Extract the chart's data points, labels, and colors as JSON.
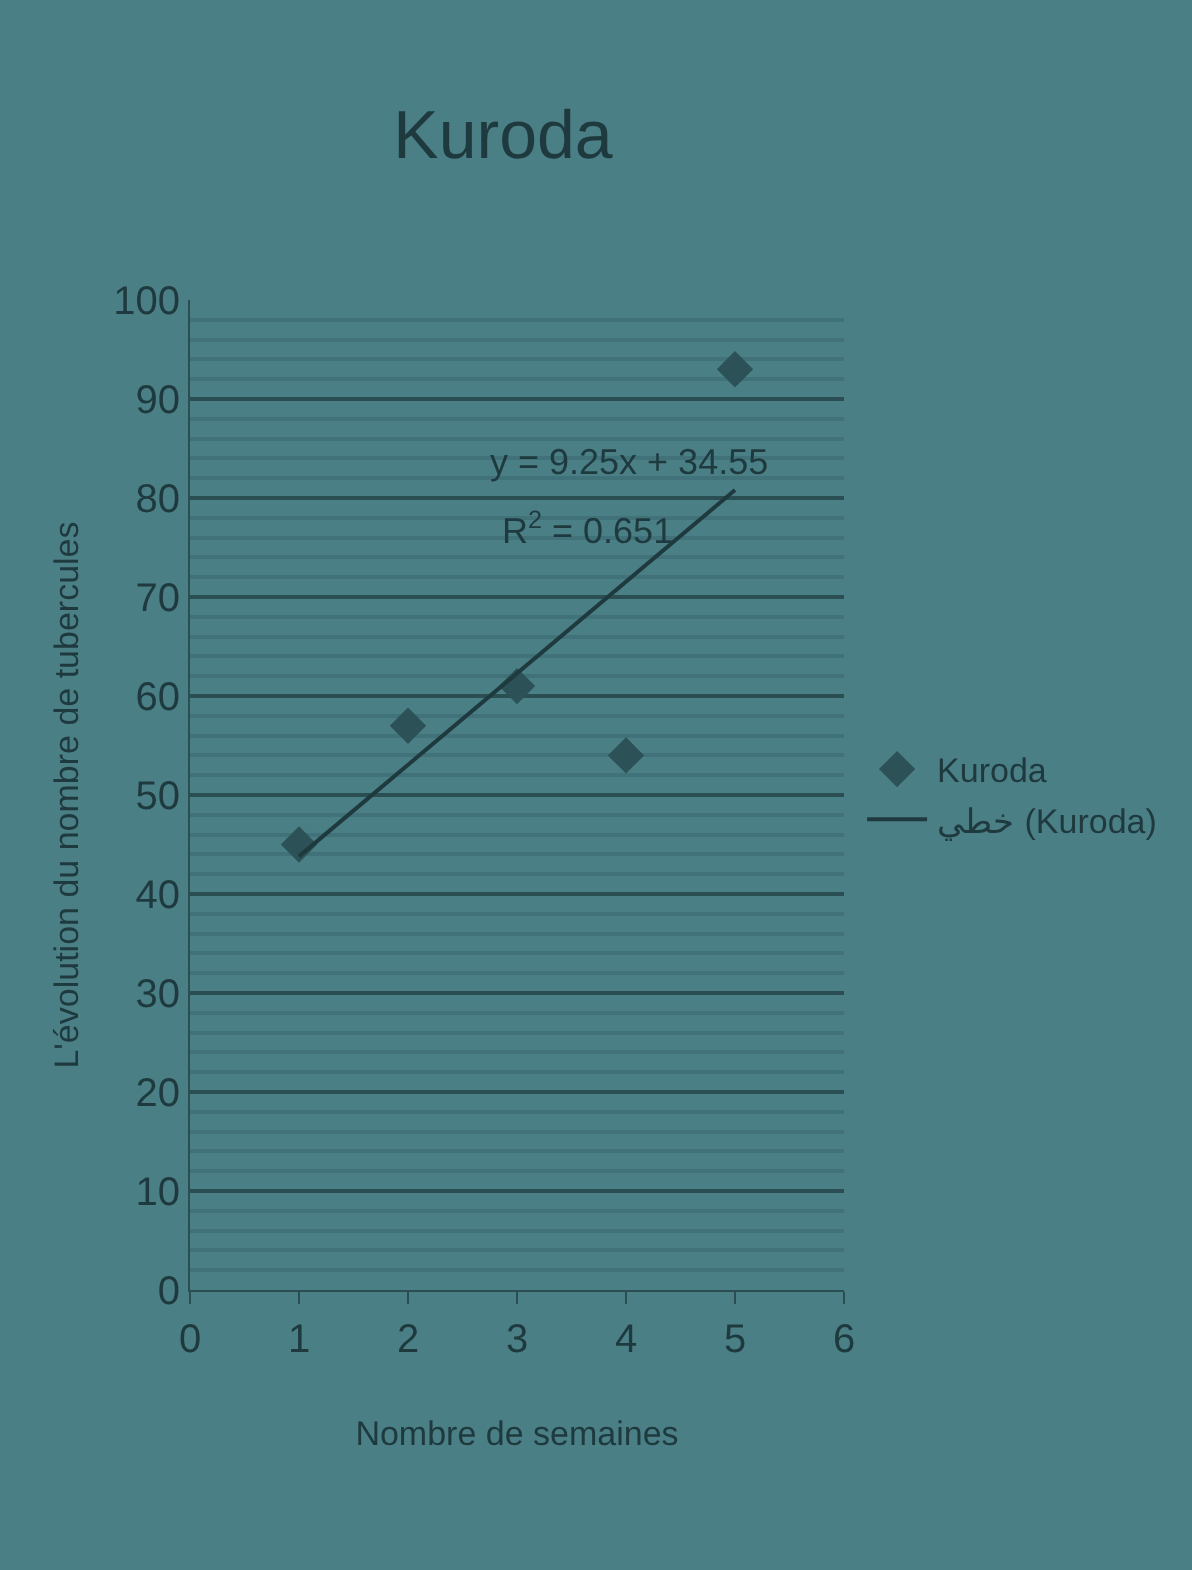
{
  "chart_data": {
    "type": "scatter",
    "title": "Kuroda",
    "xlabel": "Nombre de semaines",
    "ylabel": "L'évolution du nombre de tubercules",
    "x": [
      1,
      2,
      3,
      4,
      5
    ],
    "series": [
      {
        "name": "Kuroda",
        "color": "#2c5257",
        "values": [
          45,
          57,
          61,
          54,
          93
        ],
        "marker": "diamond"
      },
      {
        "name": "خطي (Kuroda)",
        "type": "line",
        "color": "#1f3a3e",
        "x": [
          1,
          5
        ],
        "values": [
          43.8,
          80.8
        ],
        "marker": "none",
        "line_style": "solid"
      }
    ],
    "annotations": [
      "y = 9.25x + 34.55",
      "R$^{2}$ = 0.651"
    ],
    "xlim": [
      0,
      6
    ],
    "xticks": [
      0,
      1,
      2,
      3,
      4,
      5,
      6
    ],
    "ylim": [
      0,
      100
    ],
    "yticks": [
      0,
      {
        "value": 2,
        "label": null
      },
      {
        "value": 4,
        "label": null
      },
      {
        "value": 6,
        "label": null
      },
      {
        "value": 8,
        "label": null
      },
      10,
      {
        "value": 12,
        "label": null
      },
      {
        "value": 14,
        "label": null
      },
      {
        "value": 16,
        "label": null
      },
      {
        "value": 18,
        "label": null
      },
      20,
      {
        "value": 22,
        "label": null
      },
      {
        "value": 24,
        "label": null
      },
      {
        "value": 26,
        "label": null
      },
      {
        "value": 28,
        "label": null
      },
      30,
      {
        "value": 32,
        "label": null
      },
      {
        "value": 34,
        "label": null
      },
      {
        "value": 36,
        "label": null
      },
      {
        "value": 38,
        "label": null
      },
      40,
      {
        "value": 42,
        "label": null
      },
      {
        "value": 44,
        "label": null
      },
      {
        "value": 46,
        "label": null
      },
      {
        "value": 48,
        "label": null
      },
      50,
      {
        "value": 52,
        "label": null
      },
      {
        "value": 54,
        "label": null
      },
      {
        "value": 56,
        "label": null
      },
      {
        "value": 58,
        "label": null
      },
      60,
      {
        "value": 62,
        "label": null
      },
      {
        "value": 64,
        "label": null
      },
      {
        "value": 66,
        "label": null
      },
      {
        "value": 68,
        "label": null
      },
      70,
      {
        "value": 72,
        "label": null
      },
      {
        "value": 74,
        "label": null
      },
      {
        "value": 76,
        "label": null
      },
      {
        "value": 78,
        "label": null
      },
      80,
      {
        "value": 82,
        "label": null
      },
      {
        "value": 84,
        "label": null
      },
      {
        "value": 86,
        "label": null
      },
      {
        "value": 88,
        "label": null
      },
      90,
      {
        "value": 92,
        "label": null
      },
      {
        "value": 94,
        "label": null
      },
      {
        "value": 96,
        "label": null
      },
      {
        "value": 98,
        "label": null
      },
      100
    ],
    "grid": "y",
    "legend": "right"
  }
}
